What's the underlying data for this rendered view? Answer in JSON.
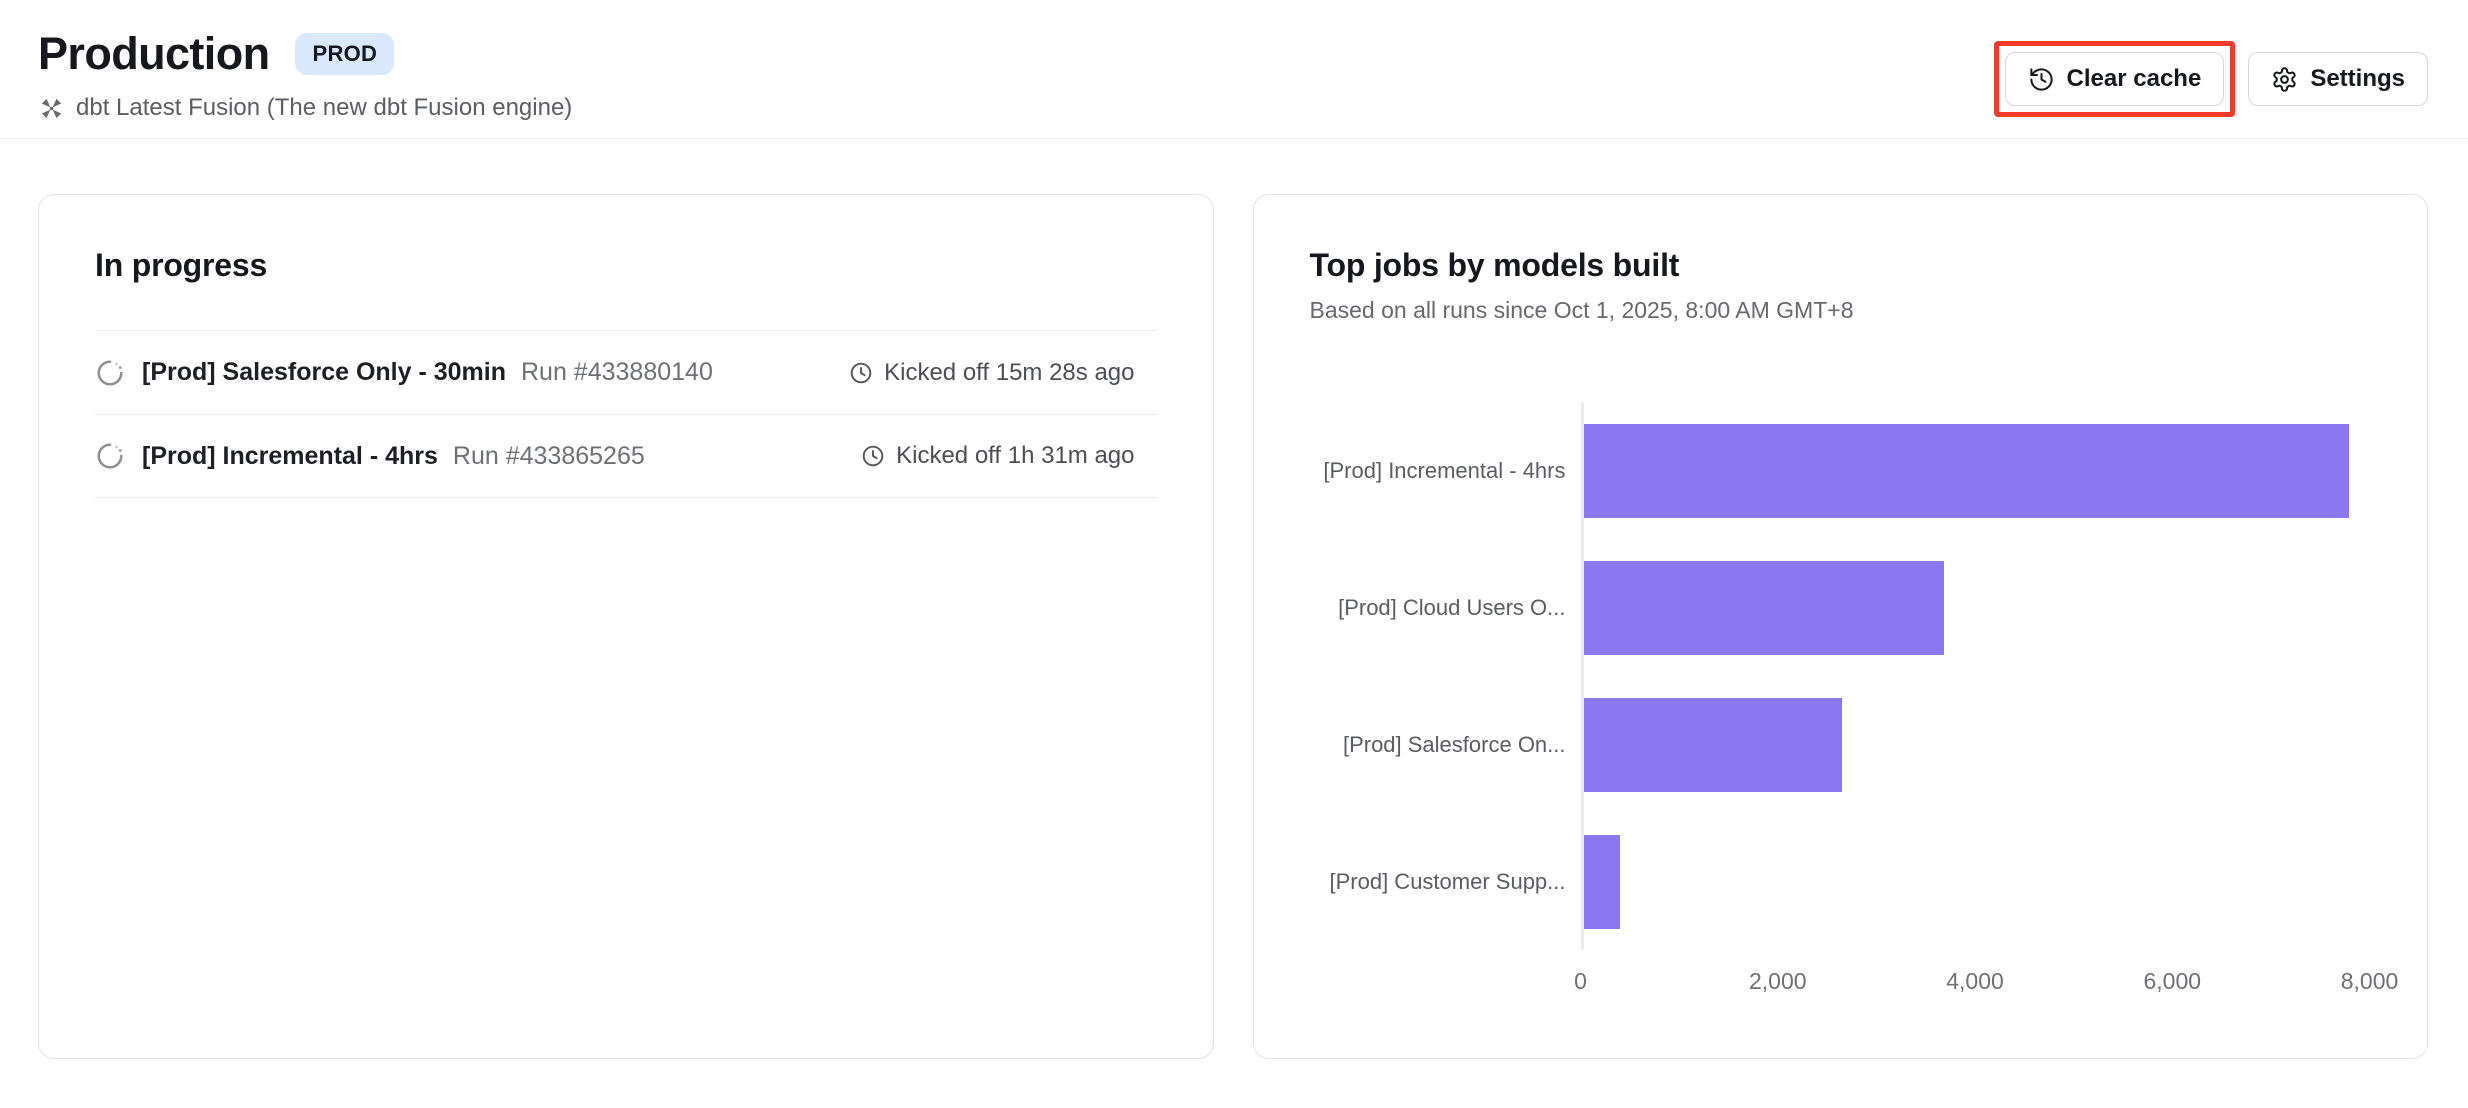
{
  "page": {
    "title": "Production",
    "env_badge": "PROD",
    "subtitle": "dbt Latest Fusion (The new dbt Fusion engine)"
  },
  "toolbar": {
    "clear_cache_label": "Clear cache",
    "settings_label": "Settings",
    "icons": {
      "clear_cache": "history-icon",
      "settings": "gear-icon"
    }
  },
  "annotation": {
    "type": "highlight-box",
    "target": "clear-cache-button",
    "color": "#f23b2b"
  },
  "in_progress": {
    "heading": "In progress",
    "runs": [
      {
        "name": "[Prod] Salesforce Only - 30min",
        "run": "Run #433880140",
        "kicked_off": "Kicked off 15m 28s ago",
        "status_icon": "spinner-icon"
      },
      {
        "name": "[Prod] Incremental - 4hrs",
        "run": "Run #433865265",
        "kicked_off": "Kicked off 1h 31m ago",
        "status_icon": "spinner-icon"
      }
    ]
  },
  "top_jobs": {
    "heading": "Top jobs by models built",
    "subheading": "Based on all runs since Oct 1, 2025, 8:00 AM GMT+8"
  },
  "chart_data": {
    "type": "bar",
    "orientation": "horizontal",
    "title": "Top jobs by models built",
    "categories": [
      "[Prod] Incremental - 4hrs",
      "[Prod] Cloud Users O...",
      "[Prod] Salesforce On...",
      "[Prod] Customer Supp..."
    ],
    "values": [
      7760,
      3660,
      2620,
      370
    ],
    "xlabel": "",
    "ylabel": "",
    "xlim": [
      0,
      8070
    ],
    "xticks": [
      0,
      2000,
      4000,
      6000,
      8000
    ],
    "xtick_labels": [
      "0",
      "2,000",
      "4,000",
      "6,000",
      "8,000"
    ],
    "grid": false,
    "legend": false,
    "bar_color": "#8b78f0",
    "axis_line_color": "#eceaf0"
  },
  "colors": {
    "badge_bg": "#d9e8fc",
    "card_border": "#e4e4e6",
    "annotation_red": "#f23b2b",
    "bar_purple": "#8b78f0"
  }
}
